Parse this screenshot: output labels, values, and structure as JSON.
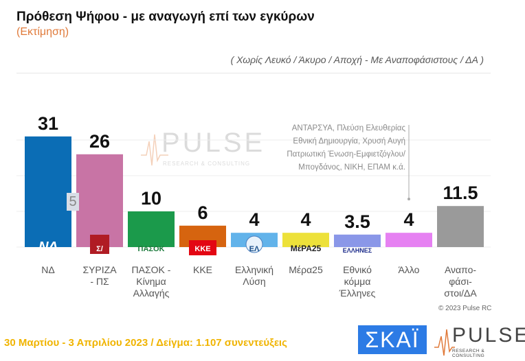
{
  "header": {
    "title": "Πρόθεση Ψήφου - με αναγωγή επί των εγκύρων",
    "subtitle": "(Εκτίμηση)",
    "note": "( Χωρίς Λευκό / Άκυρο / Αποχή  -  Με Αναποφάσιστους / ΔΑ )"
  },
  "chart_data": {
    "type": "bar",
    "title": "Πρόθεση Ψήφου - με αναγωγή επί των εγκύρων",
    "categories": [
      "ΝΔ",
      "ΣΥΡΙΖΑ - ΠΣ",
      "ΠΑΣΟΚ - Κίνημα Αλλαγής",
      "ΚΚΕ",
      "Ελληνική Λύση",
      "Μέρα25",
      "Εθνικό κόμμα Έλληνες",
      "Άλλο",
      "Αναπο- φάσι- στοι/ΔΑ"
    ],
    "category_lines": [
      [
        "ΝΔ"
      ],
      [
        "ΣΥΡΙΖΑ",
        "- ΠΣ"
      ],
      [
        "ΠΑΣΟΚ -",
        "Κίνημα",
        "Αλλαγής"
      ],
      [
        "ΚΚΕ"
      ],
      [
        "Ελληνική",
        "Λύση"
      ],
      [
        "Μέρα25"
      ],
      [
        "Εθνικό",
        "κόμμα",
        "Έλληνες"
      ],
      [
        "Άλλο"
      ],
      [
        "Αναπο-",
        "φάσι-",
        "στοι/ΔΑ"
      ]
    ],
    "values": [
      31,
      26,
      10,
      6,
      4,
      4,
      3.5,
      4,
      11.5
    ],
    "value_labels": [
      "31",
      "26",
      "10",
      "6",
      "4",
      "4",
      "3.5",
      "4",
      "11.5"
    ],
    "colors": [
      "#0b6db5",
      "#c874a5",
      "#1b9a4b",
      "#d6640f",
      "#62b3ea",
      "#ede13a",
      "#8a97e8",
      "#e681f2",
      "#9a9a9a"
    ],
    "logos": [
      "ΝΔ",
      "Σ/",
      "ΠΑΣΟΚ",
      "ΚΚΕ",
      "ΕΛ",
      "ΜέΡΑ25",
      "ΕΛΛΗΝΕΣ",
      "",
      ""
    ],
    "ylim": [
      0,
      35
    ],
    "xlabel": "",
    "ylabel": ""
  },
  "others_note": [
    "ΑΝΤΑΡΣΥΑ, Πλεύση Ελευθερίας",
    "Εθνική Δημιουργία, Χρυσή Αυγή",
    "Πατριωτική Ένωση-Εμφιετζόγλου/",
    "Μπογδάνος, ΝΙΚΗ, ΕΠΑΜ   κ.ά."
  ],
  "artifact_label": "5",
  "watermark": {
    "word": "PULSE",
    "sub": "RESEARCH & CONSULTING"
  },
  "copyright": "© 2023 Pulse RC",
  "footer": "30 Μαρτίου - 3  Απριλίου  2023  /  Δείγμα:  1.107 συνεντεύξεις",
  "logos": {
    "skai": "ΣΚΑΪ",
    "pulse": "PULSE",
    "pulse_sub": "RESEARCH & CONSULTING"
  }
}
